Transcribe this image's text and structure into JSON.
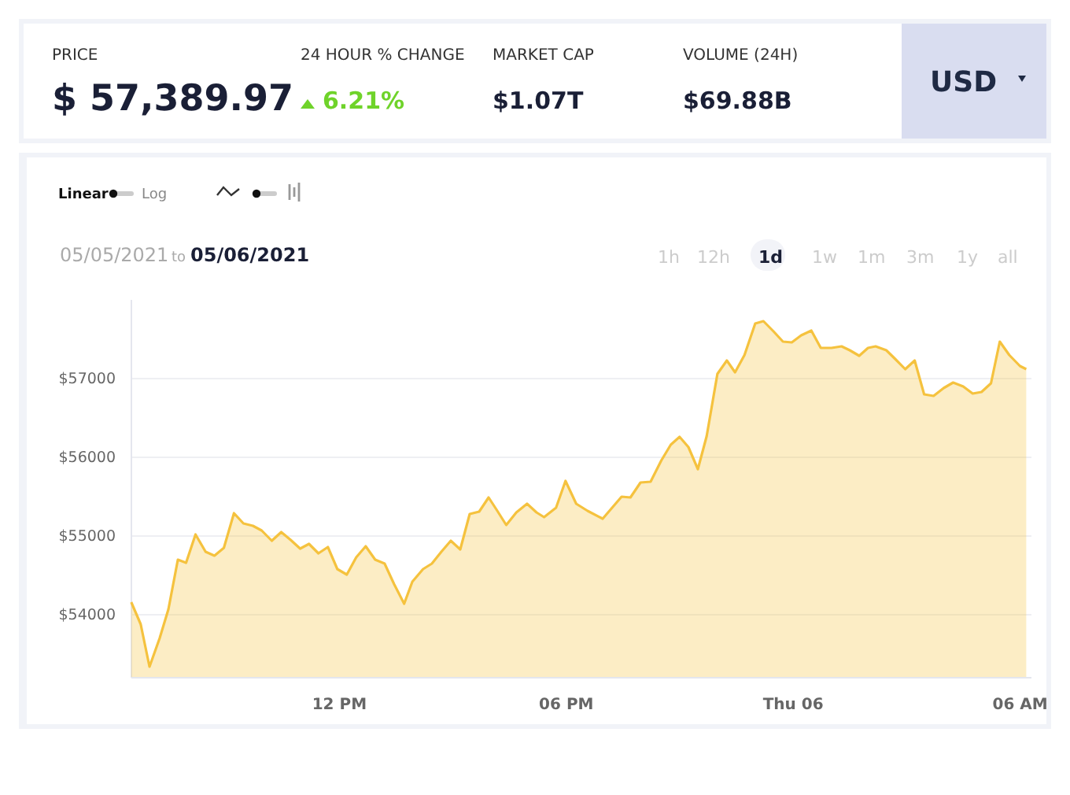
{
  "chart_data": {
    "type": "area",
    "annotations": [
      "PRICE",
      "$ 57,389.97",
      "24 HOUR % CHANGE",
      "6.21%",
      "MARKET CAP",
      "$1.07T",
      "VOLUME (24H)",
      "$69.88B",
      "USD",
      "Linear",
      "Log",
      "05/05/2021",
      "to",
      "05/06/2021",
      "1h",
      "12h",
      "1d",
      "1w",
      "1m",
      "3m",
      "1y",
      "all"
    ],
    "x": [
      "2021-05-05T06:31",
      "2021-05-05T06:46",
      "2021-05-05T07:00",
      "2021-05-05T07:16",
      "2021-05-05T07:30",
      "2021-05-05T07:45",
      "2021-05-05T07:58",
      "2021-05-05T08:13",
      "2021-05-05T08:29",
      "2021-05-05T08:43",
      "2021-05-05T08:58",
      "2021-05-05T09:14",
      "2021-05-05T09:29",
      "2021-05-05T09:44",
      "2021-05-05T09:58",
      "2021-05-05T10:14",
      "2021-05-05T10:29",
      "2021-05-05T10:44",
      "2021-05-05T10:59",
      "2021-05-05T11:13",
      "2021-05-05T11:28",
      "2021-05-05T11:43",
      "2021-05-05T11:58",
      "2021-05-05T12:13",
      "2021-05-05T12:28",
      "2021-05-05T12:43",
      "2021-05-05T12:58",
      "2021-05-05T13:13",
      "2021-05-05T13:28",
      "2021-05-05T13:44",
      "2021-05-05T13:57",
      "2021-05-05T14:14",
      "2021-05-05T14:28",
      "2021-05-05T14:43",
      "2021-05-05T14:58",
      "2021-05-05T15:13",
      "2021-05-05T15:28",
      "2021-05-05T15:43",
      "2021-05-05T15:58",
      "2021-05-05T16:11",
      "2021-05-05T16:26",
      "2021-05-05T16:42",
      "2021-05-05T16:59",
      "2021-05-05T17:14",
      "2021-05-05T17:26",
      "2021-05-05T17:45",
      "2021-05-05T18:00",
      "2021-05-05T18:17",
      "2021-05-05T18:35",
      "2021-05-05T18:59",
      "2021-05-05T19:29",
      "2021-05-05T19:43",
      "2021-05-05T19:59",
      "2021-05-05T20:15",
      "2021-05-05T20:32",
      "2021-05-05T20:47",
      "2021-05-05T21:01",
      "2021-05-05T21:15",
      "2021-05-05T21:30",
      "2021-05-05T21:44",
      "2021-05-05T22:01",
      "2021-05-05T22:16",
      "2021-05-05T22:29",
      "2021-05-05T22:44",
      "2021-05-05T23:01",
      "2021-05-05T23:14",
      "2021-05-05T23:30",
      "2021-05-05T23:45",
      "2021-05-05T23:59",
      "2021-05-06T00:14",
      "2021-05-06T00:30",
      "2021-05-06T00:45",
      "2021-05-06T01:02",
      "2021-05-06T01:18",
      "2021-05-06T01:31",
      "2021-05-06T01:46",
      "2021-05-06T02:00",
      "2021-05-06T02:12",
      "2021-05-06T02:29",
      "2021-05-06T02:43",
      "2021-05-06T02:59",
      "2021-05-06T03:14",
      "2021-05-06T03:29",
      "2021-05-06T03:44",
      "2021-05-06T04:00",
      "2021-05-06T04:15",
      "2021-05-06T04:31",
      "2021-05-06T04:46",
      "2021-05-06T05:00",
      "2021-05-06T05:15",
      "2021-05-06T05:29",
      "2021-05-06T05:44",
      "2021-05-06T06:01",
      "2021-05-06T06:11"
    ],
    "values": [
      54150,
      53870,
      53330,
      53690,
      54060,
      54690,
      54650,
      55010,
      54790,
      54740,
      54840,
      55280,
      55150,
      55120,
      55060,
      54930,
      55040,
      54940,
      54830,
      54890,
      54770,
      54850,
      54570,
      54500,
      54720,
      54860,
      54690,
      54640,
      54380,
      54130,
      54410,
      54570,
      54640,
      54790,
      54930,
      54820,
      55270,
      55300,
      55480,
      55320,
      55130,
      55290,
      55400,
      55290,
      55230,
      55350,
      55690,
      55400,
      55310,
      55210,
      55490,
      55480,
      55670,
      55680,
      55950,
      56150,
      56250,
      56120,
      55840,
      56260,
      57050,
      57220,
      57070,
      57290,
      57690,
      57720,
      57590,
      57460,
      57450,
      57540,
      57600,
      57380,
      57380,
      57400,
      57350,
      57280,
      57380,
      57400,
      57350,
      57240,
      57110,
      57220,
      56790,
      56770,
      56870,
      56940,
      56890,
      56800,
      56820,
      56930,
      57460,
      57290,
      57150,
      57110
    ],
    "color": "#f5c23e",
    "xlim": [
      "2021-05-05T06:30",
      "2021-05-06T06:18"
    ],
    "xticks": [
      {
        "value": "2021-05-05T12:00",
        "label": "12 PM"
      },
      {
        "value": "2021-05-05T18:00",
        "label": "06 PM"
      },
      {
        "value": "2021-05-06T00:00",
        "label": "Thu 06"
      },
      {
        "value": "2021-05-06T06:00",
        "label": "06 AM"
      }
    ],
    "ylim": [
      53200,
      58000
    ],
    "yticks": [
      {
        "value": 54000,
        "label": "$54000"
      },
      {
        "value": 55000,
        "label": "$55000"
      },
      {
        "value": 56000,
        "label": "$56000"
      },
      {
        "value": 57000,
        "label": "$57000"
      }
    ],
    "grid": "y",
    "marker": "none",
    "line_style": "solid"
  }
}
